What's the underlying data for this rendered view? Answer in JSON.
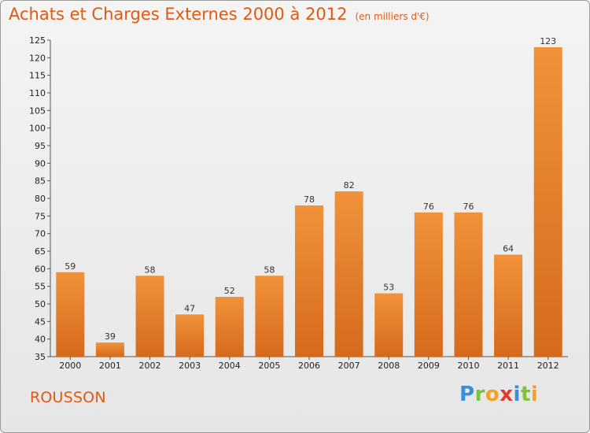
{
  "chart_data": {
    "type": "bar",
    "title": "Achats et Charges Externes 2000 à 2012",
    "subtitle": "(en milliers d'€)",
    "categories": [
      "2000",
      "2001",
      "2002",
      "2003",
      "2004",
      "2005",
      "2006",
      "2007",
      "2008",
      "2009",
      "2010",
      "2011",
      "2012"
    ],
    "values": [
      59,
      39,
      58,
      47,
      52,
      58,
      78,
      82,
      53,
      76,
      76,
      64,
      123
    ],
    "ylim": [
      35,
      125
    ],
    "yticks": [
      35,
      40,
      45,
      50,
      55,
      60,
      65,
      70,
      75,
      80,
      85,
      90,
      95,
      100,
      105,
      110,
      115,
      120,
      125
    ],
    "grid": false,
    "bar_color": "#f0923a",
    "bar_color_dark": "#d56a1c"
  },
  "footer": {
    "place": "ROUSSON",
    "logo_letters": [
      {
        "char": "P",
        "color": "#3a8fd8"
      },
      {
        "char": "r",
        "color": "#7cc23a"
      },
      {
        "char": "o",
        "color": "#f2a321"
      },
      {
        "char": "x",
        "color": "#e33a2f"
      },
      {
        "char": "i",
        "color": "#3a8fd8"
      },
      {
        "char": "t",
        "color": "#7cc23a"
      },
      {
        "char": "i",
        "color": "#f2a321"
      }
    ]
  }
}
